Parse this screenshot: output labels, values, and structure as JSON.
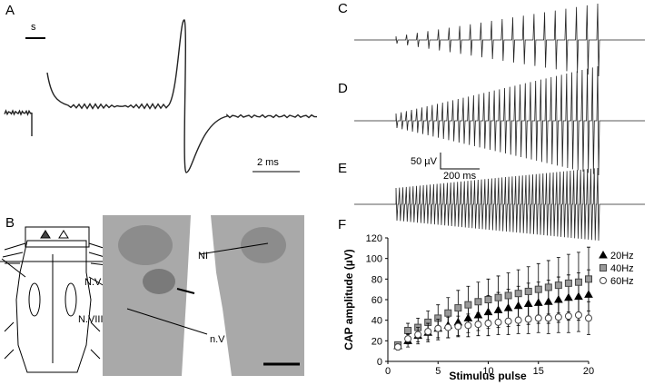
{
  "panels": {
    "a": {
      "label": "A",
      "scale_top": "s",
      "scale_time": "2 ms"
    },
    "b": {
      "label": "B",
      "nerve_5": "N.V",
      "nerve_8": "N.VIII",
      "nucleus_ni": "NI",
      "nucleus_nv": "n.V"
    },
    "c": {
      "label": "C"
    },
    "d": {
      "label": "D",
      "scale_amp": "50 µV",
      "scale_time": "200 ms"
    },
    "e": {
      "label": "E"
    },
    "f": {
      "label": "F"
    }
  },
  "chart_data": {
    "type": "errorbar-scatter",
    "xlabel": "Stimulus pulse",
    "ylabel": "CAP amplitude (µV)",
    "x": [
      1,
      2,
      3,
      4,
      5,
      6,
      7,
      8,
      9,
      10,
      11,
      12,
      13,
      14,
      15,
      16,
      17,
      18,
      19,
      20
    ],
    "xlim": [
      0,
      20
    ],
    "xticks": [
      0,
      5,
      10,
      15,
      20
    ],
    "ylim": [
      0,
      120
    ],
    "yticks": [
      0,
      20,
      40,
      60,
      80,
      100,
      120
    ],
    "series": [
      {
        "name": "20Hz",
        "color": "#000000",
        "marker": "triangle",
        "values": [
          15,
          20,
          25,
          28,
          32,
          35,
          38,
          42,
          45,
          48,
          50,
          52,
          54,
          56,
          57,
          58,
          60,
          62,
          63,
          65
        ],
        "errors": [
          3,
          6,
          8,
          9,
          11,
          12,
          13,
          14,
          15,
          16,
          17,
          18,
          19,
          20,
          20,
          21,
          22,
          22,
          23,
          24
        ]
      },
      {
        "name": "40Hz",
        "color": "#999999",
        "marker": "square",
        "values": [
          16,
          30,
          33,
          38,
          42,
          47,
          52,
          55,
          58,
          60,
          62,
          64,
          66,
          68,
          70,
          72,
          74,
          76,
          77,
          80
        ],
        "errors": [
          3,
          7,
          9,
          11,
          13,
          15,
          17,
          18,
          19,
          20,
          21,
          22,
          23,
          24,
          25,
          26,
          27,
          28,
          29,
          31
        ]
      },
      {
        "name": "60Hz",
        "color": "#ffffff",
        "marker": "circle",
        "values": [
          14,
          22,
          26,
          29,
          32,
          33,
          34,
          35,
          36,
          37,
          38,
          39,
          40,
          41,
          42,
          42,
          43,
          44,
          45,
          42
        ],
        "errors": [
          3,
          5,
          7,
          8,
          9,
          10,
          10,
          11,
          11,
          12,
          12,
          13,
          13,
          14,
          14,
          15,
          15,
          16,
          16,
          16
        ]
      }
    ]
  }
}
